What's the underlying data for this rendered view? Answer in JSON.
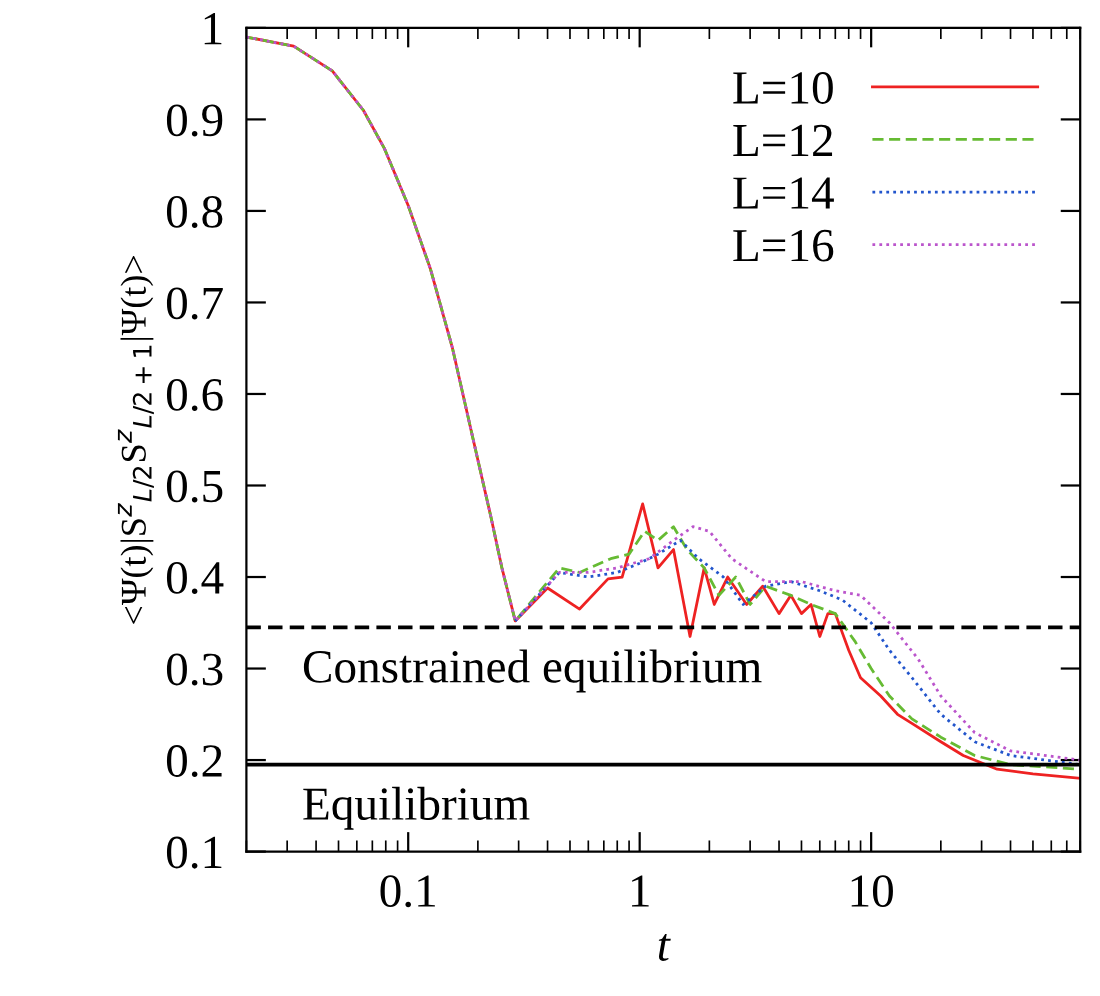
{
  "chart_data": {
    "type": "line",
    "xlabel": "t",
    "ylabel": "<Ψ(t)|S$^{z}$$_{L/2}$S$^{z}$$_{L/2+1}$|Ψ(t)>",
    "log": "x",
    "xlim": [
      0.02,
      80
    ],
    "ylim": [
      0.1,
      1
    ],
    "xticks": [
      0.1,
      1,
      10
    ],
    "yticks": [
      0.1,
      0.2,
      0.3,
      0.4,
      0.5,
      0.6,
      0.7,
      0.8,
      0.9,
      1
    ],
    "grid": false,
    "legend": "top right",
    "ref_lines": [
      {
        "axis": "y",
        "value": 0.345,
        "label": "Constrained equilibrium",
        "line_style": "dashed",
        "color": "#000000"
      },
      {
        "axis": "y",
        "value": 0.195,
        "label": "Equilibrium",
        "line_style": "solid",
        "color": "#000000"
      }
    ],
    "series": [
      {
        "name": "L=10",
        "color": "#ee2222",
        "line_style": "solid",
        "x": [
          0.02,
          0.032,
          0.047,
          0.064,
          0.079,
          0.1,
          0.125,
          0.155,
          0.191,
          0.228,
          0.254,
          0.29,
          0.4,
          0.55,
          0.73,
          0.84,
          1.03,
          1.2,
          1.4,
          1.65,
          1.9,
          2.1,
          2.4,
          2.9,
          3.4,
          4,
          4.5,
          5,
          5.5,
          6,
          6.5,
          7,
          8,
          9,
          11,
          13,
          15,
          20,
          25,
          35,
          50,
          80
        ],
        "values": [
          0.99,
          0.98,
          0.953,
          0.91,
          0.868,
          0.806,
          0.736,
          0.651,
          0.55,
          0.465,
          0.41,
          0.352,
          0.388,
          0.365,
          0.398,
          0.4,
          0.48,
          0.41,
          0.43,
          0.335,
          0.41,
          0.37,
          0.4,
          0.37,
          0.39,
          0.36,
          0.38,
          0.36,
          0.37,
          0.335,
          0.36,
          0.36,
          0.32,
          0.29,
          0.27,
          0.25,
          0.24,
          0.22,
          0.205,
          0.19,
          0.185,
          0.18
        ]
      },
      {
        "name": "L=12",
        "color": "#66bb33",
        "line_style": "dashed",
        "x": [
          0.02,
          0.032,
          0.047,
          0.064,
          0.079,
          0.1,
          0.125,
          0.155,
          0.191,
          0.228,
          0.254,
          0.29,
          0.45,
          0.55,
          0.75,
          0.9,
          1.05,
          1.2,
          1.4,
          1.6,
          1.9,
          2.2,
          2.6,
          3,
          3.5,
          4.5,
          5.5,
          7,
          8.5,
          10,
          12,
          15,
          20,
          28,
          40,
          80
        ],
        "values": [
          0.99,
          0.98,
          0.953,
          0.91,
          0.868,
          0.806,
          0.736,
          0.651,
          0.55,
          0.465,
          0.41,
          0.352,
          0.41,
          0.405,
          0.42,
          0.425,
          0.45,
          0.44,
          0.455,
          0.43,
          0.41,
          0.38,
          0.4,
          0.37,
          0.39,
          0.38,
          0.37,
          0.36,
          0.33,
          0.3,
          0.27,
          0.245,
          0.225,
          0.205,
          0.195,
          0.19
        ]
      },
      {
        "name": "L=14",
        "color": "#2255cc",
        "line_style": "dotted",
        "x": [
          0.29,
          0.45,
          0.6,
          0.8,
          1,
          1.2,
          1.5,
          1.8,
          2.3,
          2.8,
          3.5,
          4.5,
          6,
          7.5,
          10,
          12,
          15,
          20,
          28,
          40,
          80
        ],
        "values": [
          0.352,
          0.405,
          0.4,
          0.405,
          0.415,
          0.425,
          0.44,
          0.42,
          0.4,
          0.37,
          0.39,
          0.395,
          0.385,
          0.375,
          0.35,
          0.32,
          0.29,
          0.25,
          0.22,
          0.205,
          0.195
        ]
      },
      {
        "name": "L=16",
        "color": "#bb55cc",
        "line_style": "dotted",
        "x": [
          0.02,
          0.032,
          0.047,
          0.064,
          0.079,
          0.1,
          0.125,
          0.155,
          0.191,
          0.228,
          0.254,
          0.29,
          0.45,
          0.6,
          0.8,
          1.1,
          1.4,
          1.7,
          2,
          2.5,
          3.5,
          5,
          7,
          9,
          12,
          16,
          20,
          28,
          40,
          80
        ],
        "values": [
          0.99,
          0.98,
          0.953,
          0.91,
          0.868,
          0.806,
          0.736,
          0.651,
          0.55,
          0.465,
          0.41,
          0.352,
          0.405,
          0.405,
          0.41,
          0.42,
          0.44,
          0.455,
          0.45,
          0.42,
          0.395,
          0.395,
          0.385,
          0.38,
          0.35,
          0.31,
          0.27,
          0.23,
          0.21,
          0.2
        ]
      }
    ]
  }
}
